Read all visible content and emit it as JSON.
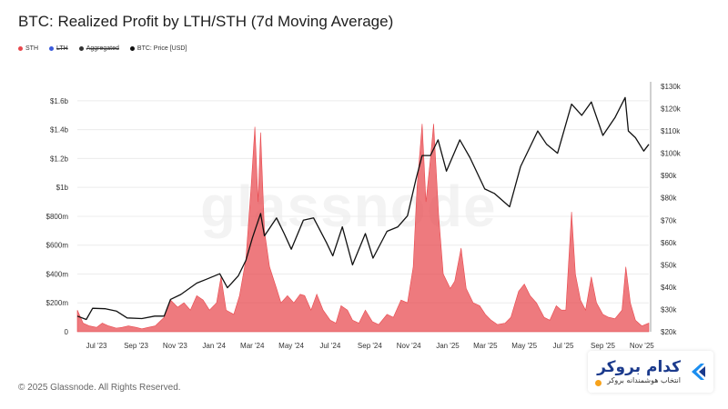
{
  "header": {
    "title": "BTC: Realized Profit by LTH/STH (7d Moving Average)"
  },
  "legend": [
    {
      "label": "STH",
      "color": "#e8474c",
      "struck": false
    },
    {
      "label": "LTH",
      "color": "#3b5bdb",
      "struck": true
    },
    {
      "label": "Aggregated",
      "color": "#333333",
      "struck": true
    },
    {
      "label": "BTC: Price [USD]",
      "color": "#111111",
      "struck": false
    }
  ],
  "watermark": "glassnode",
  "footer": {
    "copyright": "© 2025 Glassnode. All Rights Reserved."
  },
  "badge": {
    "name": "کدام بروکر",
    "subtitle": "انتخاب هوشمندانه بروکر",
    "logo_icon": "chevron-logo-icon",
    "accent": "#1b3a8c"
  },
  "chart_data": {
    "type": "area",
    "title": "BTC: Realized Profit by LTH/STH (7d Moving Average)",
    "x_ticks": [
      "Jul '23",
      "Sep '23",
      "Nov '23",
      "Jan '24",
      "Mar '24",
      "May '24",
      "Jul '24",
      "Sep '24",
      "Nov '24",
      "Jan '25",
      "Mar '25",
      "May '25",
      "Jul '25",
      "Sep '25",
      "Nov '25"
    ],
    "y_left_ticks": [
      "0",
      "$200m",
      "$400m",
      "$600m",
      "$800m",
      "$1b",
      "$1.2b",
      "$1.4b",
      "$1.6b"
    ],
    "y_left_range": [
      0,
      1700000000
    ],
    "y_right_ticks": [
      "$20k",
      "$30k",
      "$40k",
      "$50k",
      "$60k",
      "$70k",
      "$80k",
      "$90k",
      "$100k",
      "$110k",
      "$120k",
      "$130k"
    ],
    "y_right_range": [
      20000,
      130000
    ],
    "x_range": [
      "2023-06-01",
      "2025-11-12"
    ],
    "grid": "horizontal",
    "legend_position": "top-left",
    "series": [
      {
        "name": "STH",
        "axis": "left",
        "color": "#e8474c",
        "kind": "area",
        "points": [
          [
            "2023-06-01",
            150000000
          ],
          [
            "2023-06-10",
            60000000
          ],
          [
            "2023-06-20",
            40000000
          ],
          [
            "2023-07-01",
            30000000
          ],
          [
            "2023-07-10",
            60000000
          ],
          [
            "2023-07-20",
            40000000
          ],
          [
            "2023-08-01",
            25000000
          ],
          [
            "2023-08-10",
            30000000
          ],
          [
            "2023-08-20",
            40000000
          ],
          [
            "2023-09-01",
            30000000
          ],
          [
            "2023-09-10",
            20000000
          ],
          [
            "2023-09-20",
            30000000
          ],
          [
            "2023-10-01",
            40000000
          ],
          [
            "2023-10-15",
            100000000
          ],
          [
            "2023-10-25",
            220000000
          ],
          [
            "2023-11-05",
            170000000
          ],
          [
            "2023-11-15",
            200000000
          ],
          [
            "2023-11-25",
            150000000
          ],
          [
            "2023-12-05",
            250000000
          ],
          [
            "2023-12-15",
            220000000
          ],
          [
            "2023-12-25",
            150000000
          ],
          [
            "2024-01-05",
            200000000
          ],
          [
            "2024-01-12",
            380000000
          ],
          [
            "2024-01-20",
            150000000
          ],
          [
            "2024-02-01",
            120000000
          ],
          [
            "2024-02-10",
            250000000
          ],
          [
            "2024-02-20",
            500000000
          ],
          [
            "2024-02-28",
            1000000000
          ],
          [
            "2024-03-05",
            1420000000
          ],
          [
            "2024-03-10",
            900000000
          ],
          [
            "2024-03-14",
            1380000000
          ],
          [
            "2024-03-20",
            700000000
          ],
          [
            "2024-03-28",
            450000000
          ],
          [
            "2024-04-08",
            300000000
          ],
          [
            "2024-04-15",
            200000000
          ],
          [
            "2024-04-25",
            250000000
          ],
          [
            "2024-05-05",
            200000000
          ],
          [
            "2024-05-15",
            260000000
          ],
          [
            "2024-05-22",
            250000000
          ],
          [
            "2024-06-01",
            150000000
          ],
          [
            "2024-06-10",
            260000000
          ],
          [
            "2024-06-20",
            150000000
          ],
          [
            "2024-07-01",
            80000000
          ],
          [
            "2024-07-10",
            60000000
          ],
          [
            "2024-07-18",
            180000000
          ],
          [
            "2024-07-28",
            150000000
          ],
          [
            "2024-08-05",
            80000000
          ],
          [
            "2024-08-15",
            60000000
          ],
          [
            "2024-08-25",
            150000000
          ],
          [
            "2024-09-05",
            70000000
          ],
          [
            "2024-09-15",
            50000000
          ],
          [
            "2024-09-28",
            120000000
          ],
          [
            "2024-10-08",
            100000000
          ],
          [
            "2024-10-20",
            220000000
          ],
          [
            "2024-10-30",
            200000000
          ],
          [
            "2024-11-08",
            450000000
          ],
          [
            "2024-11-14",
            1000000000
          ],
          [
            "2024-11-22",
            1440000000
          ],
          [
            "2024-11-28",
            900000000
          ],
          [
            "2024-12-05",
            1200000000
          ],
          [
            "2024-12-10",
            1440000000
          ],
          [
            "2024-12-18",
            800000000
          ],
          [
            "2024-12-25",
            400000000
          ],
          [
            "2025-01-05",
            300000000
          ],
          [
            "2025-01-12",
            350000000
          ],
          [
            "2025-01-22",
            580000000
          ],
          [
            "2025-01-30",
            300000000
          ],
          [
            "2025-02-10",
            200000000
          ],
          [
            "2025-02-20",
            180000000
          ],
          [
            "2025-03-01",
            120000000
          ],
          [
            "2025-03-10",
            80000000
          ],
          [
            "2025-03-20",
            50000000
          ],
          [
            "2025-04-01",
            60000000
          ],
          [
            "2025-04-10",
            100000000
          ],
          [
            "2025-04-22",
            280000000
          ],
          [
            "2025-05-01",
            330000000
          ],
          [
            "2025-05-10",
            250000000
          ],
          [
            "2025-05-20",
            200000000
          ],
          [
            "2025-06-01",
            100000000
          ],
          [
            "2025-06-10",
            80000000
          ],
          [
            "2025-06-20",
            180000000
          ],
          [
            "2025-06-28",
            150000000
          ],
          [
            "2025-07-05",
            150000000
          ],
          [
            "2025-07-14",
            830000000
          ],
          [
            "2025-07-20",
            400000000
          ],
          [
            "2025-07-28",
            220000000
          ],
          [
            "2025-08-05",
            150000000
          ],
          [
            "2025-08-14",
            380000000
          ],
          [
            "2025-08-22",
            200000000
          ],
          [
            "2025-09-01",
            120000000
          ],
          [
            "2025-09-10",
            100000000
          ],
          [
            "2025-09-20",
            90000000
          ],
          [
            "2025-10-01",
            150000000
          ],
          [
            "2025-10-07",
            450000000
          ],
          [
            "2025-10-14",
            200000000
          ],
          [
            "2025-10-22",
            80000000
          ],
          [
            "2025-11-01",
            40000000
          ],
          [
            "2025-11-12",
            60000000
          ]
        ]
      },
      {
        "name": "BTC: Price [USD]",
        "axis": "right",
        "color": "#111111",
        "kind": "line",
        "points": [
          [
            "2023-06-01",
            27000
          ],
          [
            "2023-06-15",
            25500
          ],
          [
            "2023-06-25",
            30500
          ],
          [
            "2023-07-15",
            30300
          ],
          [
            "2023-08-01",
            29300
          ],
          [
            "2023-08-18",
            26200
          ],
          [
            "2023-09-10",
            25900
          ],
          [
            "2023-09-30",
            27000
          ],
          [
            "2023-10-15",
            27000
          ],
          [
            "2023-10-25",
            34500
          ],
          [
            "2023-11-10",
            36700
          ],
          [
            "2023-12-05",
            41800
          ],
          [
            "2023-12-20",
            43500
          ],
          [
            "2024-01-10",
            46000
          ],
          [
            "2024-01-22",
            39700
          ],
          [
            "2024-02-08",
            45000
          ],
          [
            "2024-02-20",
            52000
          ],
          [
            "2024-03-01",
            62000
          ],
          [
            "2024-03-14",
            73000
          ],
          [
            "2024-03-20",
            63000
          ],
          [
            "2024-04-08",
            71000
          ],
          [
            "2024-04-20",
            64000
          ],
          [
            "2024-05-01",
            57000
          ],
          [
            "2024-05-20",
            70000
          ],
          [
            "2024-06-05",
            71000
          ],
          [
            "2024-06-25",
            60000
          ],
          [
            "2024-07-05",
            54000
          ],
          [
            "2024-07-20",
            67000
          ],
          [
            "2024-08-05",
            50000
          ],
          [
            "2024-08-25",
            64000
          ],
          [
            "2024-09-06",
            53000
          ],
          [
            "2024-09-28",
            65000
          ],
          [
            "2024-10-15",
            67000
          ],
          [
            "2024-10-30",
            72000
          ],
          [
            "2024-11-12",
            88000
          ],
          [
            "2024-11-22",
            99000
          ],
          [
            "2024-12-05",
            99000
          ],
          [
            "2024-12-17",
            106000
          ],
          [
            "2024-12-30",
            92000
          ],
          [
            "2025-01-20",
            106000
          ],
          [
            "2025-02-05",
            98000
          ],
          [
            "2025-02-28",
            84000
          ],
          [
            "2025-03-15",
            82000
          ],
          [
            "2025-04-08",
            76000
          ],
          [
            "2025-04-25",
            94000
          ],
          [
            "2025-05-22",
            110000
          ],
          [
            "2025-06-05",
            104000
          ],
          [
            "2025-06-22",
            100000
          ],
          [
            "2025-07-14",
            122000
          ],
          [
            "2025-07-30",
            117000
          ],
          [
            "2025-08-14",
            123000
          ],
          [
            "2025-09-01",
            108000
          ],
          [
            "2025-09-20",
            116000
          ],
          [
            "2025-10-06",
            125000
          ],
          [
            "2025-10-11",
            110000
          ],
          [
            "2025-10-22",
            107000
          ],
          [
            "2025-11-04",
            101000
          ],
          [
            "2025-11-12",
            104000
          ]
        ]
      }
    ]
  }
}
